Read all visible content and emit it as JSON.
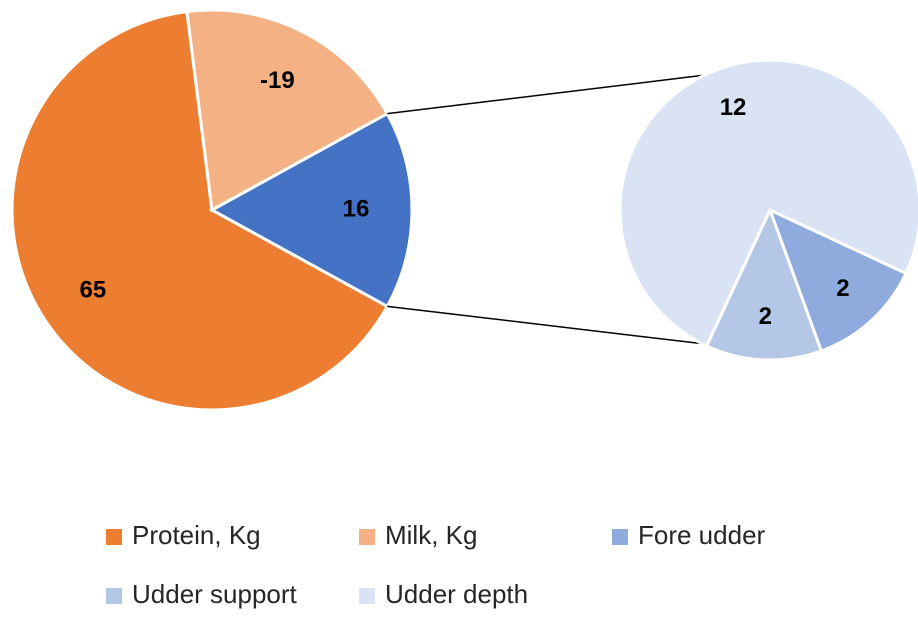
{
  "chart_data": {
    "type": "pie-of-pie",
    "categories": [
      "Protein, Kg",
      "Milk, Kg",
      "Fore udder",
      "Udder support",
      "Udder depth"
    ],
    "values": [
      65,
      -19,
      2,
      2,
      12
    ],
    "colors": [
      "#ED7D31",
      "#F4B183",
      "#8FAADC",
      "#B4C7E7",
      "#DAE3F3"
    ],
    "secondary_count": 3,
    "other_value": 16,
    "other_color": "#4472C4"
  }
}
